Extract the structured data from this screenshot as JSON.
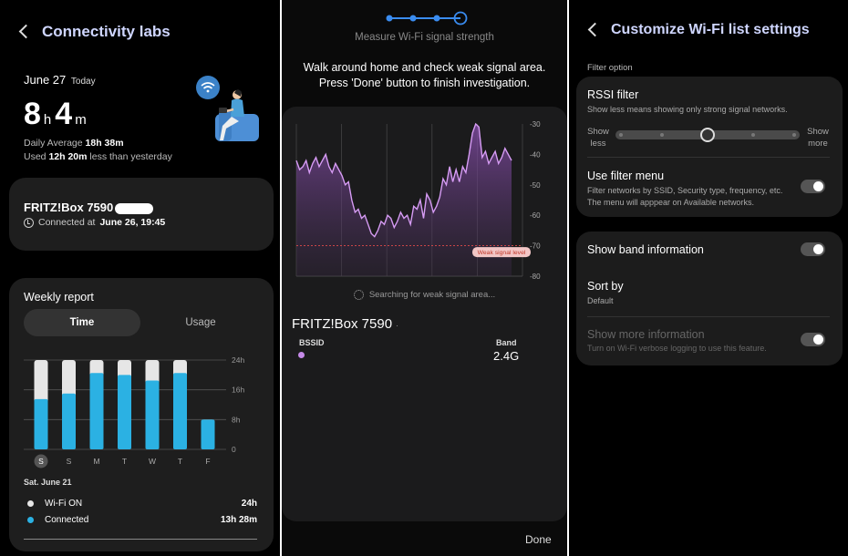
{
  "p1": {
    "title": "Connectivity labs",
    "date": "June 27",
    "today": "Today",
    "hours": "8",
    "hours_unit": "h",
    "minutes": "4",
    "minutes_unit": "m",
    "daily_avg_label": "Daily Average",
    "daily_avg_value": "18h 38m",
    "used_label": "Used",
    "used_value": "12h 20m",
    "used_suffix": "less than yesterday",
    "network_name": "FRITZ!Box 7590",
    "connected_label": "Connected at",
    "connected_value": "June 26, 19:45",
    "weekly_title": "Weekly report",
    "tab_time": "Time",
    "tab_usage": "Usage",
    "selected_date": "Sat. June 21",
    "legend": [
      {
        "label": "Wi-Fi ON",
        "value": "24h",
        "color": "#e6e6e6"
      },
      {
        "label": "Connected",
        "value": "13h 28m",
        "color": "#2bb1e3"
      }
    ]
  },
  "chart_data": [
    {
      "type": "bar",
      "title": "Weekly report",
      "categories": [
        "S",
        "S",
        "M",
        "T",
        "W",
        "T",
        "F"
      ],
      "series": [
        {
          "name": "Wi-Fi ON",
          "values": [
            24,
            24,
            24,
            24,
            24,
            24,
            8
          ]
        },
        {
          "name": "Connected",
          "values": [
            13.5,
            15,
            20.5,
            20,
            18.5,
            20.5,
            8
          ]
        }
      ],
      "y_ticks": [
        "24h",
        "16h",
        "8h",
        "0"
      ],
      "ylim": [
        0,
        24
      ],
      "selected": "S",
      "grid": true
    },
    {
      "type": "area",
      "title": "Measure Wi-Fi signal strength",
      "y_ticks": [
        "-30",
        "-40",
        "-50",
        "-60",
        "-70",
        "-80"
      ],
      "ylim": [
        -80,
        -30
      ],
      "threshold": {
        "label": "Weak signal level",
        "value": -70
      },
      "values": [
        -42,
        -45,
        -44,
        -42,
        -46,
        -43,
        -41,
        -44,
        -42,
        -40,
        -44,
        -46,
        -43,
        -45,
        -47,
        -50,
        -49,
        -55,
        -59,
        -58,
        -61,
        -60,
        -63,
        -66,
        -67,
        -65,
        -62,
        -63,
        -60,
        -61,
        -64,
        -62,
        -59,
        -61,
        -60,
        -63,
        -57,
        -58,
        -55,
        -61,
        -53,
        -55,
        -59,
        -57,
        -54,
        -48,
        -50,
        -44,
        -49,
        -45,
        -49,
        -44,
        -46,
        -40,
        -33,
        -30,
        -31,
        -41,
        -39,
        -43,
        -41,
        -39,
        -43,
        -41,
        -38,
        -40,
        -42
      ]
    }
  ],
  "p2": {
    "step_title": "Measure Wi-Fi signal strength",
    "instr1": "Walk around home and check weak signal area.",
    "instr2": "Press 'Done' button to finish investigation.",
    "threshold_label": "Weak signal level",
    "searching": "Searching for weak signal area...",
    "network_name": "FRITZ!Box 7590",
    "bssid_label": "BSSID",
    "band_label": "Band",
    "band_value": "2.4G",
    "done": "Done"
  },
  "p3": {
    "title": "Customize Wi-Fi list settings",
    "filter_option": "Filter option",
    "rssi_title": "RSSI filter",
    "rssi_sub": "Show less means showing only strong signal networks.",
    "show_less": "Show less",
    "show_more": "Show more",
    "rssi_level": 0.5,
    "filter_menu_title": "Use filter menu",
    "filter_menu_sub": "Filter networks by SSID, Security type, frequency, etc. The menu will apppear on Available networks.",
    "band_info": "Show band information",
    "sort_by": "Sort by",
    "sort_value": "Default",
    "more_info": "Show more information",
    "more_info_sub": "Turn on Wi-Fi verbose logging to use this feature."
  }
}
